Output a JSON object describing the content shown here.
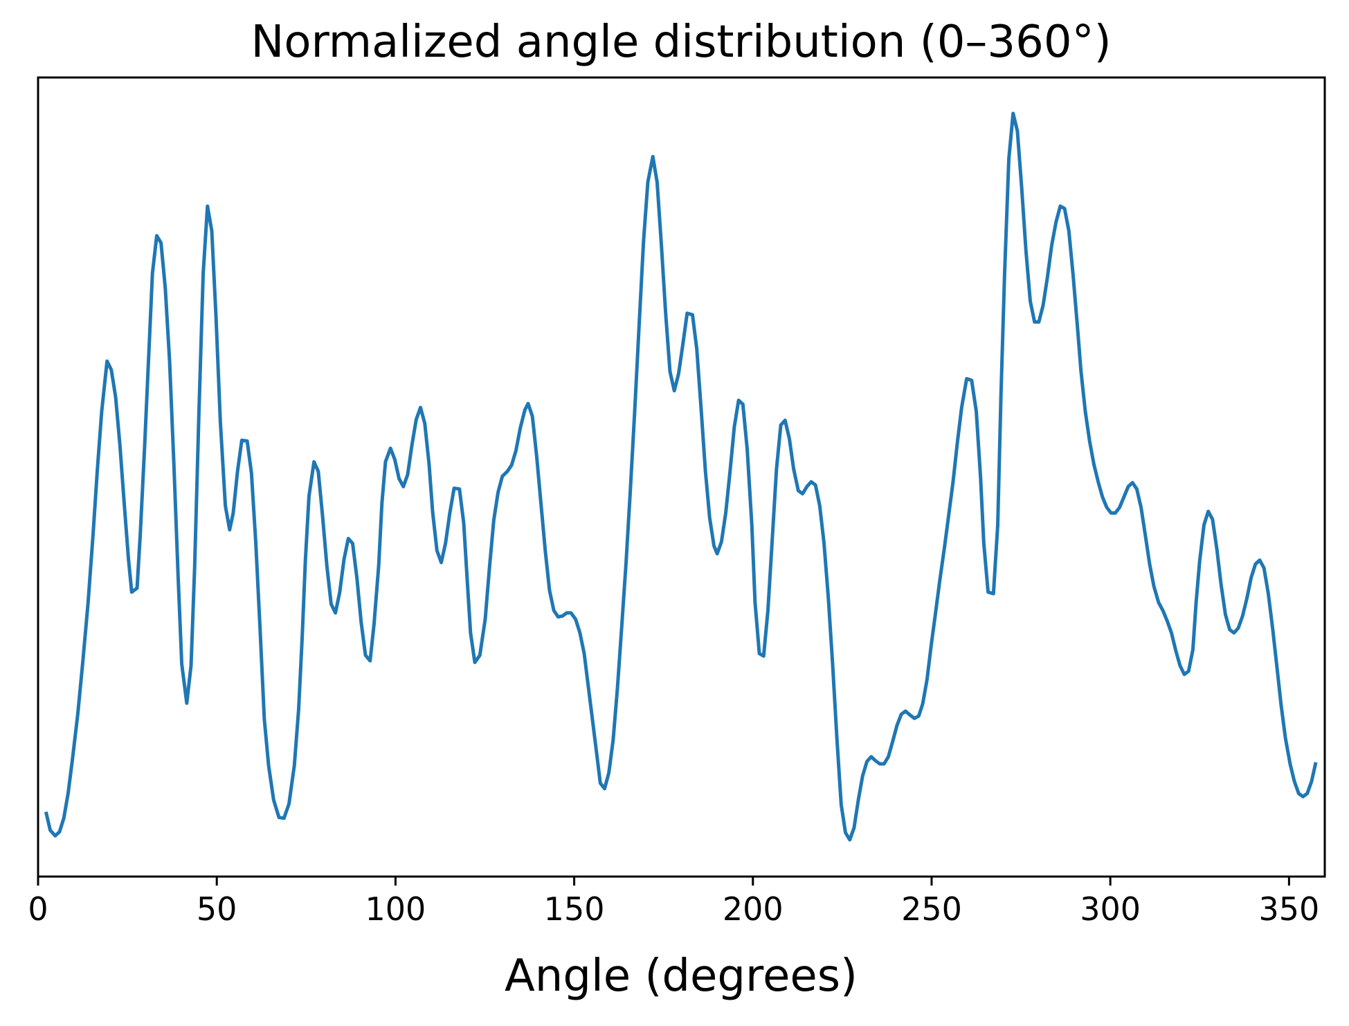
{
  "chart_data": {
    "type": "line",
    "title": "Normalized angle distribution (0–360°)",
    "xlabel": "Angle (degrees)",
    "xlim": [
      0,
      360
    ],
    "xticks": [
      0,
      50,
      100,
      150,
      200,
      250,
      300,
      350
    ],
    "ylim": [
      0,
      1
    ],
    "grid": false,
    "x": [
      2.2,
      3.4,
      4.8,
      6.0,
      7.2,
      8.4,
      9.6,
      11.1,
      12.5,
      14.0,
      15.4,
      16.6,
      17.8,
      19.3,
      20.5,
      21.7,
      22.9,
      24.1,
      25.3,
      26.2,
      27.7,
      28.6,
      29.8,
      31.0,
      32.0,
      33.2,
      34.4,
      35.6,
      36.8,
      38.0,
      39.2,
      40.2,
      41.6,
      42.8,
      43.8,
      45.0,
      46.2,
      47.4,
      48.6,
      49.8,
      51.0,
      52.4,
      53.6,
      54.6,
      55.8,
      57.0,
      58.5,
      59.7,
      60.9,
      62.1,
      63.3,
      64.5,
      65.9,
      67.4,
      68.8,
      70.2,
      71.7,
      72.9,
      73.9,
      74.8,
      75.8,
      77.2,
      78.4,
      79.6,
      80.8,
      82.0,
      83.2,
      84.4,
      85.6,
      86.8,
      88.0,
      89.2,
      90.4,
      91.6,
      92.9,
      94.0,
      95.3,
      96.2,
      97.2,
      98.6,
      99.8,
      101.0,
      102.2,
      103.4,
      104.6,
      105.8,
      107.0,
      108.2,
      109.4,
      110.4,
      111.6,
      112.8,
      114.0,
      115.2,
      116.4,
      117.9,
      119.1,
      120.0,
      121.0,
      122.2,
      123.6,
      125.1,
      126.3,
      127.5,
      128.7,
      129.9,
      131.3,
      132.5,
      133.7,
      134.9,
      136.2,
      137.1,
      138.3,
      139.5,
      140.7,
      141.9,
      143.1,
      144.3,
      145.5,
      146.7,
      147.9,
      149.1,
      150.4,
      151.6,
      152.8,
      154.0,
      155.2,
      156.4,
      157.3,
      158.5,
      159.7,
      160.9,
      162.1,
      163.3,
      164.5,
      165.7,
      166.9,
      168.2,
      169.4,
      170.6,
      172.0,
      173.2,
      174.4,
      175.6,
      176.8,
      178.0,
      179.2,
      180.4,
      181.6,
      183.1,
      184.3,
      185.5,
      186.7,
      187.9,
      189.1,
      190.0,
      191.2,
      192.4,
      193.6,
      194.8,
      196.0,
      197.2,
      198.4,
      199.7,
      200.6,
      201.8,
      203.0,
      204.2,
      205.4,
      206.6,
      207.8,
      209.0,
      210.2,
      211.4,
      212.7,
      213.9,
      215.1,
      216.3,
      217.5,
      218.7,
      219.9,
      221.1,
      222.3,
      223.5,
      224.7,
      225.9,
      227.1,
      228.3,
      229.5,
      230.7,
      231.9,
      233.1,
      234.3,
      235.5,
      236.7,
      237.9,
      239.1,
      240.3,
      241.5,
      242.7,
      244.0,
      245.2,
      246.4,
      247.5,
      248.7,
      249.9,
      251.1,
      252.3,
      253.6,
      254.8,
      256.0,
      257.2,
      258.4,
      259.8,
      261.2,
      262.5,
      263.7,
      264.6,
      265.8,
      267.3,
      268.5,
      269.4,
      270.4,
      271.6,
      272.8,
      274.0,
      275.2,
      276.4,
      277.6,
      278.8,
      280.0,
      281.2,
      282.4,
      283.6,
      284.8,
      286.0,
      287.2,
      288.4,
      289.6,
      290.8,
      291.8,
      293.0,
      294.2,
      295.4,
      296.6,
      297.8,
      299.0,
      300.2,
      301.4,
      302.6,
      303.8,
      305.0,
      306.2,
      307.4,
      308.6,
      309.8,
      311.0,
      312.2,
      313.5,
      314.7,
      315.9,
      317.1,
      318.3,
      319.5,
      320.7,
      321.9,
      323.1,
      324.0,
      325.0,
      326.2,
      327.4,
      328.6,
      329.8,
      331.0,
      332.2,
      333.4,
      334.6,
      335.8,
      337.0,
      338.2,
      339.4,
      340.6,
      341.8,
      343.0,
      344.2,
      345.4,
      346.6,
      347.8,
      349.0,
      350.3,
      351.5,
      352.7,
      353.9,
      355.1,
      356.3,
      357.5
    ],
    "series": [
      {
        "color": "#1f77b4",
        "values": [
          0.081,
          0.058,
          0.051,
          0.056,
          0.073,
          0.104,
          0.146,
          0.203,
          0.268,
          0.343,
          0.429,
          0.51,
          0.582,
          0.645,
          0.634,
          0.6,
          0.54,
          0.467,
          0.397,
          0.356,
          0.361,
          0.429,
          0.537,
          0.656,
          0.755,
          0.802,
          0.793,
          0.736,
          0.645,
          0.516,
          0.374,
          0.266,
          0.217,
          0.264,
          0.386,
          0.58,
          0.755,
          0.839,
          0.808,
          0.699,
          0.569,
          0.464,
          0.434,
          0.455,
          0.507,
          0.546,
          0.545,
          0.505,
          0.419,
          0.311,
          0.197,
          0.139,
          0.096,
          0.074,
          0.073,
          0.091,
          0.139,
          0.209,
          0.3,
          0.397,
          0.476,
          0.519,
          0.507,
          0.451,
          0.389,
          0.341,
          0.33,
          0.356,
          0.397,
          0.423,
          0.417,
          0.374,
          0.318,
          0.277,
          0.27,
          0.316,
          0.389,
          0.467,
          0.519,
          0.536,
          0.522,
          0.498,
          0.488,
          0.503,
          0.54,
          0.572,
          0.587,
          0.567,
          0.516,
          0.456,
          0.408,
          0.393,
          0.417,
          0.455,
          0.486,
          0.485,
          0.442,
          0.376,
          0.305,
          0.268,
          0.277,
          0.322,
          0.387,
          0.446,
          0.481,
          0.501,
          0.507,
          0.515,
          0.533,
          0.561,
          0.584,
          0.592,
          0.576,
          0.526,
          0.467,
          0.408,
          0.358,
          0.333,
          0.325,
          0.326,
          0.33,
          0.33,
          0.322,
          0.305,
          0.279,
          0.236,
          0.193,
          0.15,
          0.117,
          0.11,
          0.13,
          0.171,
          0.236,
          0.313,
          0.392,
          0.483,
          0.58,
          0.693,
          0.795,
          0.869,
          0.901,
          0.869,
          0.79,
          0.704,
          0.632,
          0.608,
          0.629,
          0.666,
          0.705,
          0.703,
          0.66,
          0.586,
          0.508,
          0.449,
          0.414,
          0.404,
          0.419,
          0.455,
          0.507,
          0.563,
          0.596,
          0.591,
          0.535,
          0.44,
          0.343,
          0.279,
          0.276,
          0.333,
          0.421,
          0.51,
          0.565,
          0.571,
          0.548,
          0.51,
          0.483,
          0.479,
          0.488,
          0.494,
          0.49,
          0.464,
          0.417,
          0.349,
          0.266,
          0.173,
          0.09,
          0.055,
          0.046,
          0.061,
          0.096,
          0.126,
          0.144,
          0.15,
          0.145,
          0.141,
          0.141,
          0.15,
          0.169,
          0.189,
          0.203,
          0.207,
          0.202,
          0.198,
          0.201,
          0.216,
          0.246,
          0.29,
          0.33,
          0.371,
          0.412,
          0.453,
          0.494,
          0.543,
          0.587,
          0.623,
          0.621,
          0.582,
          0.499,
          0.417,
          0.356,
          0.354,
          0.44,
          0.602,
          0.752,
          0.898,
          0.955,
          0.933,
          0.862,
          0.783,
          0.72,
          0.694,
          0.694,
          0.715,
          0.75,
          0.79,
          0.819,
          0.839,
          0.836,
          0.808,
          0.752,
          0.688,
          0.632,
          0.582,
          0.545,
          0.516,
          0.494,
          0.475,
          0.462,
          0.455,
          0.455,
          0.462,
          0.475,
          0.488,
          0.493,
          0.485,
          0.462,
          0.427,
          0.391,
          0.363,
          0.343,
          0.333,
          0.32,
          0.305,
          0.283,
          0.264,
          0.253,
          0.257,
          0.284,
          0.343,
          0.395,
          0.44,
          0.457,
          0.447,
          0.41,
          0.365,
          0.328,
          0.309,
          0.305,
          0.311,
          0.326,
          0.348,
          0.374,
          0.391,
          0.396,
          0.386,
          0.354,
          0.311,
          0.263,
          0.214,
          0.173,
          0.141,
          0.119,
          0.104,
          0.1,
          0.104,
          0.119,
          0.143
        ]
      }
    ]
  }
}
